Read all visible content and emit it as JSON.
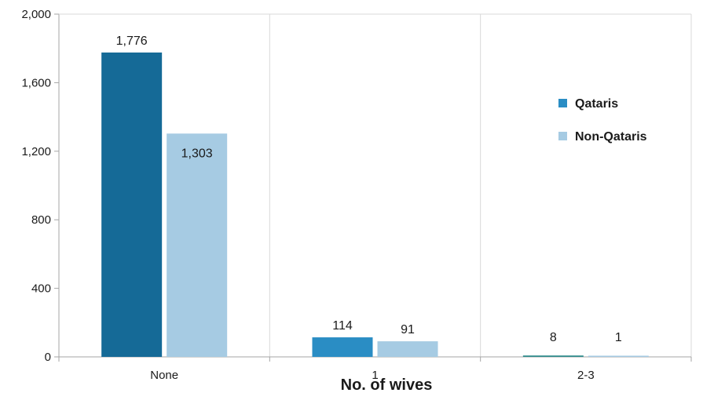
{
  "chart_data": {
    "type": "bar",
    "categories": [
      "None",
      "1",
      "2-3"
    ],
    "series": [
      {
        "name": "Qataris",
        "values": [
          1776,
          114,
          8
        ],
        "colors": [
          "#156a97",
          "#2a8dc4",
          "#2e8b8b"
        ]
      },
      {
        "name": "Non-Qataris",
        "values": [
          1303,
          91,
          1
        ],
        "colors": [
          "#a6cbe3",
          "#a6cbe3",
          "#a6cbe3"
        ]
      }
    ],
    "data_labels": [
      [
        "1,776",
        "114",
        "8"
      ],
      [
        "1,303",
        "91",
        "1"
      ]
    ],
    "xlabel": "No. of wives",
    "ylabel": "",
    "ylim": [
      0,
      2000
    ],
    "yticks": [
      0,
      400,
      800,
      1200,
      1600,
      2000
    ],
    "ytick_labels": [
      "0",
      "400",
      "800",
      "1,200",
      "1,600",
      "2,000"
    ],
    "grid": "vertical",
    "legend_position": "right",
    "legend_colors": [
      "#2a8dc4",
      "#a6cbe3"
    ]
  }
}
